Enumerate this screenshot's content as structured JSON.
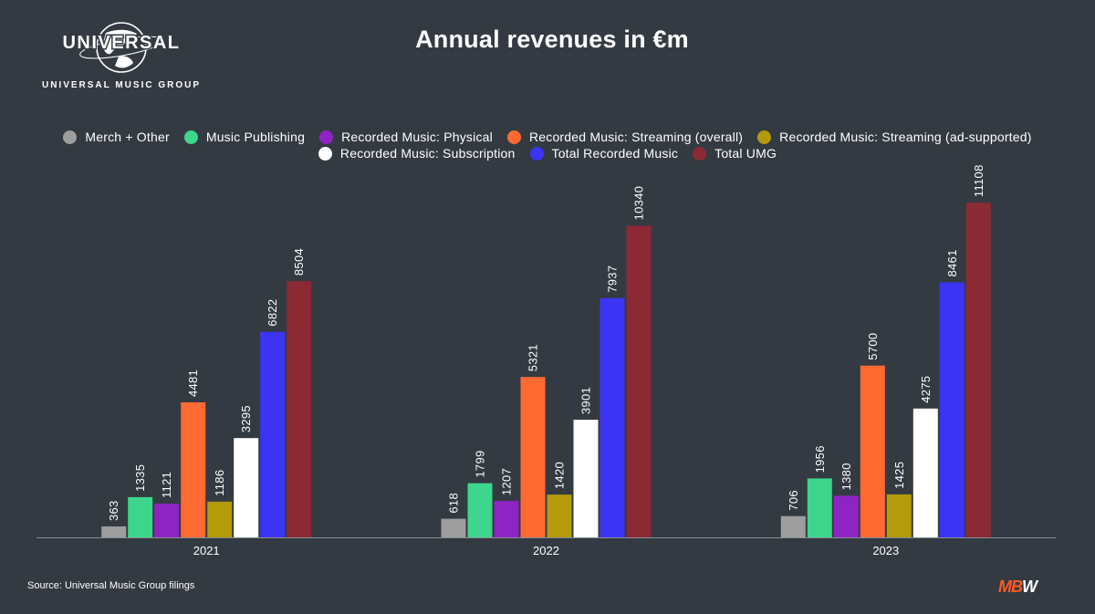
{
  "logo": {
    "wordmark": "UNIVERSAL",
    "subtitle": "UNIVERSAL MUSIC GROUP"
  },
  "brand": {
    "text": "MBW",
    "colors": {
      "m": "#ff5a1f",
      "b": "#ff5a1f",
      "w": "#ffffff"
    }
  },
  "source": "Source: Universal Music Group filings",
  "colors": {
    "background": "#343a42",
    "axis_line": "#8a8f96",
    "text": "#ffffff"
  },
  "chart_data": {
    "type": "bar",
    "title": "Annual revenues in €m",
    "categories": [
      "2021",
      "2022",
      "2023"
    ],
    "ylim": [
      0,
      12200
    ],
    "grid": false,
    "legend_position": "top",
    "series": [
      {
        "name": "Merch + Other",
        "color": "#9e9e9e",
        "values": [
          363,
          618,
          706
        ]
      },
      {
        "name": "Music Publishing",
        "color": "#3dd68c",
        "values": [
          1335,
          1799,
          1956
        ]
      },
      {
        "name": "Recorded Music: Physical",
        "color": "#8e24c4",
        "values": [
          1121,
          1207,
          1380
        ]
      },
      {
        "name": "Recorded Music: Streaming (overall)",
        "color": "#ff6a33",
        "values": [
          4481,
          5321,
          5700
        ]
      },
      {
        "name": "Recorded Music: Streaming (ad-supported)",
        "color": "#b39b0a",
        "values": [
          1186,
          1420,
          1425
        ]
      },
      {
        "name": "Recorded Music: Subscription",
        "color": "#ffffff",
        "values": [
          3295,
          3901,
          4275
        ]
      },
      {
        "name": "Total Recorded Music",
        "color": "#3b34f5",
        "values": [
          6822,
          7937,
          8461
        ]
      },
      {
        "name": "Total UMG",
        "color": "#8b2a34",
        "values": [
          8504,
          10340,
          11108
        ]
      }
    ]
  }
}
